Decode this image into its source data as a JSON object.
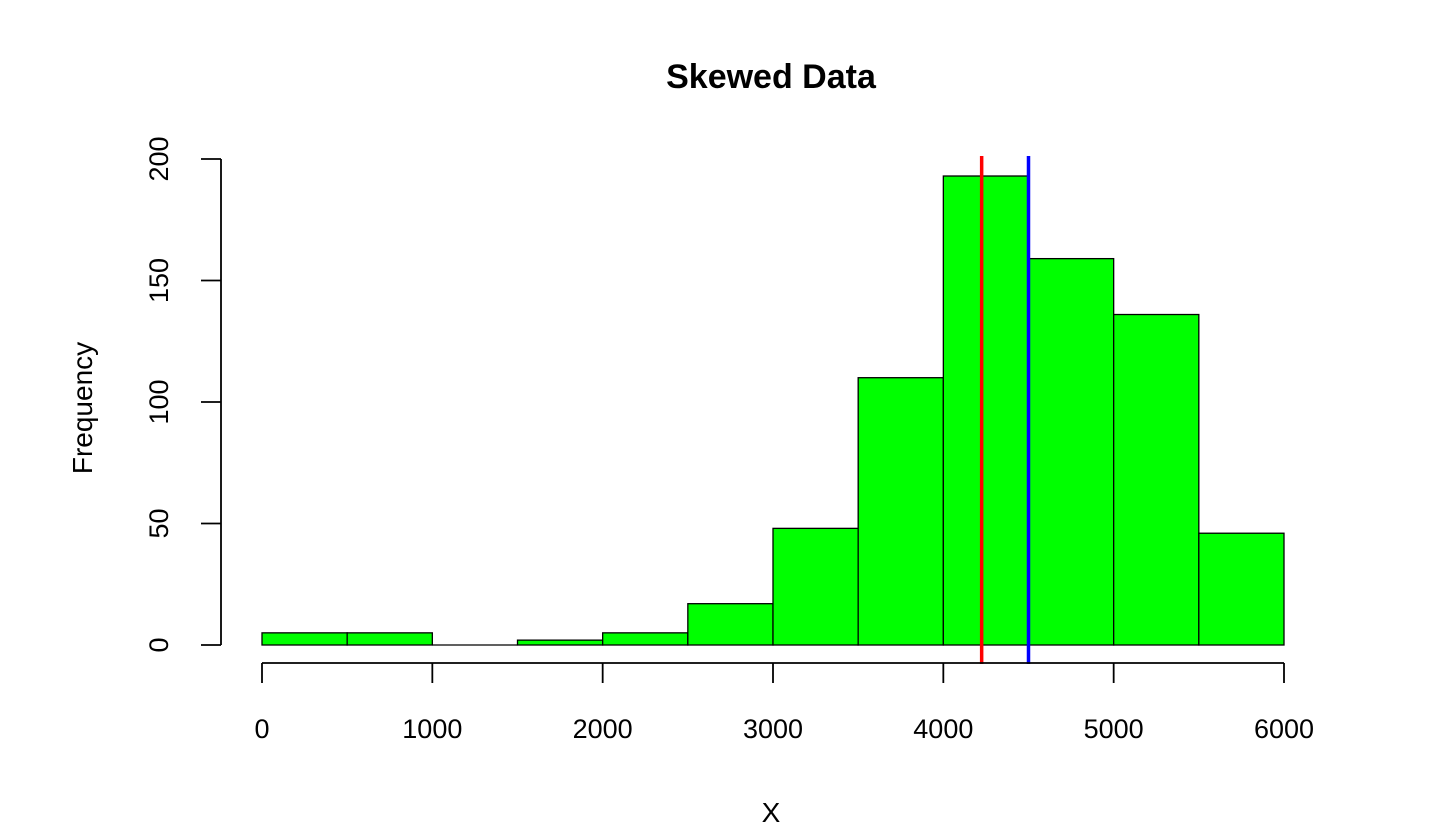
{
  "chart_data": {
    "type": "histogram",
    "title": "Skewed Data",
    "xlabel": "X",
    "ylabel": "Frequency",
    "xlim": [
      0,
      6000
    ],
    "ylim": [
      0,
      200
    ],
    "x_ticks": [
      "0",
      "1000",
      "2000",
      "3000",
      "4000",
      "5000",
      "6000"
    ],
    "y_ticks": [
      "0",
      "50",
      "100",
      "150",
      "200"
    ],
    "bins": [
      {
        "start": 0,
        "end": 500,
        "count": 5
      },
      {
        "start": 500,
        "end": 1000,
        "count": 5
      },
      {
        "start": 1000,
        "end": 1500,
        "count": 0
      },
      {
        "start": 1500,
        "end": 2000,
        "count": 2
      },
      {
        "start": 2000,
        "end": 2500,
        "count": 5
      },
      {
        "start": 2500,
        "end": 3000,
        "count": 17
      },
      {
        "start": 3000,
        "end": 3500,
        "count": 48
      },
      {
        "start": 3500,
        "end": 4000,
        "count": 110
      },
      {
        "start": 4000,
        "end": 4500,
        "count": 193
      },
      {
        "start": 4500,
        "end": 5000,
        "count": 159
      },
      {
        "start": 5000,
        "end": 5500,
        "count": 136
      },
      {
        "start": 5500,
        "end": 6000,
        "count": 46
      }
    ],
    "bar_color": "#00ff00",
    "vertical_lines": [
      {
        "x": 4225,
        "color": "#ff0000"
      },
      {
        "x": 4500,
        "color": "#0000ff"
      }
    ],
    "grid": false,
    "legend": "none"
  }
}
